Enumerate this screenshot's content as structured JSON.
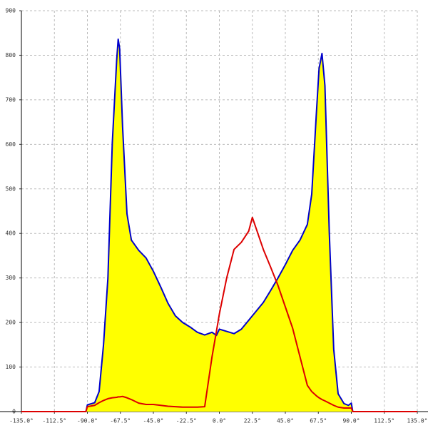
{
  "chart_data": {
    "type": "line",
    "x": [
      -135,
      -91,
      -90,
      -85,
      -82,
      -79,
      -76,
      -73,
      -70,
      -69,
      -68,
      -66,
      -63,
      -60,
      -55,
      -50,
      -45,
      -40,
      -35,
      -30,
      -25,
      -20,
      -15,
      -10,
      -5,
      -2,
      0,
      5,
      10,
      15,
      20,
      22.5,
      25,
      30,
      35,
      40,
      45,
      50,
      55,
      60,
      63,
      66,
      68,
      70,
      72,
      75,
      78,
      81,
      85,
      88,
      90,
      91,
      135
    ],
    "series": [
      {
        "color": "#0000cc",
        "fill": "#ffff00",
        "values": [
          null,
          0,
          15,
          20,
          45,
          150,
          300,
          604,
          790,
          836,
          815,
          640,
          444,
          385,
          362,
          345,
          315,
          280,
          243,
          215,
          200,
          190,
          178,
          172,
          178,
          171,
          185,
          180,
          175,
          185,
          205,
          215,
          225,
          245,
          272,
          300,
          330,
          362,
          385,
          420,
          488,
          660,
          770,
          804,
          732,
          400,
          140,
          40,
          18,
          14,
          19,
          0,
          null
        ]
      },
      {
        "color": "#dd0000",
        "values": [
          0,
          0,
          11,
          14,
          20,
          25,
          29,
          31,
          32,
          33,
          33,
          34,
          31,
          27,
          19,
          16,
          16,
          14,
          12,
          11,
          10,
          10,
          10,
          11,
          123,
          180,
          219,
          300,
          364,
          380,
          405,
          436,
          412,
          364,
          324,
          283,
          235,
          187,
          123,
          59,
          45,
          36,
          31,
          27,
          24,
          19,
          14,
          10,
          8,
          8,
          8,
          0,
          0
        ]
      }
    ],
    "xlim": [
      -135,
      135
    ],
    "xticks": [
      {
        "value": -135,
        "label": "-135.0°"
      },
      {
        "value": -112.5,
        "label": "-112.5°"
      },
      {
        "value": -90,
        "label": "-90.0°"
      },
      {
        "value": -67.5,
        "label": "-67.5°"
      },
      {
        "value": -45,
        "label": "-45.0°"
      },
      {
        "value": -22.5,
        "label": "-22.5°"
      },
      {
        "value": 0,
        "label": "0.0°"
      },
      {
        "value": 22.5,
        "label": "22.5°"
      },
      {
        "value": 45,
        "label": "45.0°"
      },
      {
        "value": 67.5,
        "label": "67.5°"
      },
      {
        "value": 90,
        "label": "90.0°"
      },
      {
        "value": 112.5,
        "label": "112.5°"
      },
      {
        "value": 135,
        "label": "135.0°"
      }
    ],
    "ylim": [
      0,
      900
    ],
    "yticks": [
      0,
      100,
      200,
      300,
      400,
      500,
      600,
      700,
      800,
      900
    ],
    "grid": true
  }
}
